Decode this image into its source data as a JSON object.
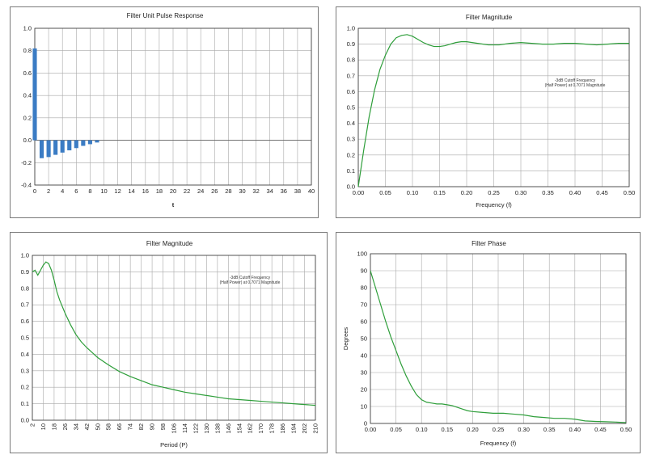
{
  "colors": {
    "bar": "#3b7cc4",
    "line": "#2e9e3a"
  },
  "chart_data": [
    {
      "type": "bar",
      "title": "Filter Unit Pulse Response",
      "xlabel": "t",
      "ylabel": "",
      "x_ticks": [
        "0",
        "2",
        "4",
        "6",
        "8",
        "10",
        "12",
        "14",
        "16",
        "18",
        "20",
        "22",
        "24",
        "26",
        "28",
        "30",
        "32",
        "34",
        "36",
        "38",
        "40"
      ],
      "y_ticks": [
        "1.0",
        "0.8",
        "0.6",
        "0.4",
        "0.2",
        "0.0",
        "-0.2",
        "-0.4"
      ],
      "xlim": [
        0,
        40
      ],
      "ylim": [
        -0.4,
        1.0
      ],
      "x": [
        0,
        1,
        2,
        3,
        4,
        5,
        6,
        7,
        8,
        9
      ],
      "values": [
        0.82,
        -0.16,
        -0.15,
        -0.13,
        -0.11,
        -0.09,
        -0.07,
        -0.05,
        -0.035,
        -0.02
      ],
      "grid": true
    },
    {
      "type": "line",
      "title": "Filter Magnitude",
      "xlabel": "Frequency (f)",
      "ylabel": "",
      "x_ticks": [
        "0.00",
        "0.05",
        "0.10",
        "0.15",
        "0.20",
        "0.25",
        "0.30",
        "0.35",
        "0.40",
        "0.45",
        "0.50"
      ],
      "y_ticks": [
        "1.0",
        "0.9",
        "0.8",
        "0.7",
        "0.6",
        "0.5",
        "0.4",
        "0.3",
        "0.2",
        "0.1",
        "0.0"
      ],
      "xlim": [
        0,
        0.5
      ],
      "ylim": [
        0,
        1.0
      ],
      "annotation": [
        "-3dB Cutoff Frequency",
        "(Half Power) at 0.7071 Magnitude"
      ],
      "x": [
        0,
        0.01,
        0.02,
        0.03,
        0.04,
        0.05,
        0.06,
        0.07,
        0.08,
        0.09,
        0.1,
        0.11,
        0.12,
        0.13,
        0.14,
        0.15,
        0.16,
        0.17,
        0.18,
        0.19,
        0.2,
        0.22,
        0.24,
        0.26,
        0.28,
        0.3,
        0.32,
        0.34,
        0.36,
        0.38,
        0.4,
        0.42,
        0.44,
        0.46,
        0.48,
        0.5
      ],
      "y": [
        0,
        0.23,
        0.44,
        0.61,
        0.74,
        0.83,
        0.9,
        0.94,
        0.955,
        0.96,
        0.95,
        0.93,
        0.91,
        0.895,
        0.885,
        0.885,
        0.89,
        0.9,
        0.91,
        0.915,
        0.915,
        0.905,
        0.895,
        0.895,
        0.905,
        0.91,
        0.905,
        0.9,
        0.9,
        0.905,
        0.905,
        0.9,
        0.895,
        0.9,
        0.905,
        0.905
      ],
      "grid": true
    },
    {
      "type": "line",
      "title": "Filter Magnitude",
      "xlabel": "Period (P)",
      "ylabel": "",
      "x_ticks": [
        "2",
        "10",
        "18",
        "26",
        "34",
        "42",
        "50",
        "58",
        "66",
        "74",
        "82",
        "90",
        "98",
        "106",
        "114",
        "122",
        "130",
        "138",
        "146",
        "154",
        "162",
        "170",
        "178",
        "186",
        "194",
        "202",
        "210"
      ],
      "y_ticks": [
        "1.0",
        "0.9",
        "0.8",
        "0.7",
        "0.6",
        "0.5",
        "0.4",
        "0.3",
        "0.2",
        "0.1",
        "0.0"
      ],
      "xlim": [
        2,
        210
      ],
      "ylim": [
        0,
        1.0
      ],
      "annotation": [
        "-3dB Cutoff Frequency",
        "(Half Power) at 0.7071 Magnitude"
      ],
      "x": [
        2,
        4,
        6,
        8,
        10,
        12,
        14,
        16,
        18,
        20,
        22,
        26,
        30,
        34,
        38,
        42,
        46,
        50,
        58,
        66,
        74,
        82,
        90,
        98,
        106,
        114,
        122,
        130,
        138,
        146,
        154,
        162,
        170,
        178,
        186,
        194,
        202,
        210
      ],
      "y": [
        0.9,
        0.91,
        0.88,
        0.91,
        0.94,
        0.96,
        0.95,
        0.91,
        0.85,
        0.78,
        0.73,
        0.65,
        0.58,
        0.52,
        0.475,
        0.44,
        0.41,
        0.38,
        0.335,
        0.295,
        0.265,
        0.24,
        0.215,
        0.2,
        0.185,
        0.17,
        0.16,
        0.15,
        0.14,
        0.13,
        0.125,
        0.12,
        0.115,
        0.11,
        0.105,
        0.1,
        0.095,
        0.09
      ],
      "grid": true
    },
    {
      "type": "line",
      "title": "Filter Phase",
      "xlabel": "Frequency (f)",
      "ylabel": "Degrees",
      "x_ticks": [
        "0.00",
        "0.05",
        "0.10",
        "0.15",
        "0.20",
        "0.25",
        "0.30",
        "0.35",
        "0.40",
        "0.45",
        "0.50"
      ],
      "y_ticks": [
        "100",
        "90",
        "80",
        "70",
        "60",
        "50",
        "40",
        "30",
        "20",
        "10",
        "0"
      ],
      "xlim": [
        0,
        0.5
      ],
      "ylim": [
        0,
        100
      ],
      "x": [
        0,
        0.01,
        0.02,
        0.03,
        0.04,
        0.05,
        0.06,
        0.07,
        0.08,
        0.09,
        0.1,
        0.11,
        0.12,
        0.13,
        0.14,
        0.15,
        0.16,
        0.17,
        0.18,
        0.19,
        0.2,
        0.22,
        0.24,
        0.26,
        0.28,
        0.3,
        0.32,
        0.34,
        0.36,
        0.38,
        0.4,
        0.42,
        0.44,
        0.46,
        0.48,
        0.5
      ],
      "y": [
        90,
        80,
        70,
        60,
        51,
        43,
        35,
        28,
        22,
        17,
        14,
        12.5,
        12,
        11.5,
        11.5,
        11,
        10.5,
        9.5,
        8.5,
        7.5,
        7,
        6.5,
        6,
        6,
        5.5,
        5,
        4,
        3.5,
        3,
        3,
        2.5,
        1.5,
        1.2,
        1,
        0.8,
        0.5
      ],
      "grid": true
    }
  ]
}
